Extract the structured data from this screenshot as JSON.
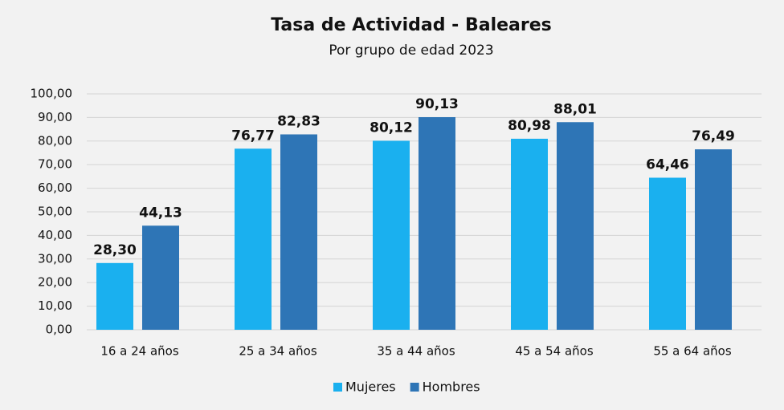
{
  "chart_data": {
    "type": "bar",
    "title": "Tasa de Actividad - Baleares",
    "subtitle": "Por grupo de edad 2023",
    "categories": [
      "16 a 24 años",
      "25 a 34 años",
      "35 a 44 años",
      "45 a 54 años",
      "55 a 64 años"
    ],
    "series": [
      {
        "name": "Mujeres",
        "color": "#1ab0ef",
        "values": [
          28.3,
          76.77,
          80.12,
          80.98,
          64.46
        ],
        "value_labels": [
          "28,30",
          "76,77",
          "80,12",
          "80,98",
          "64,46"
        ]
      },
      {
        "name": "Hombres",
        "color": "#2e75b6",
        "values": [
          44.13,
          82.83,
          90.13,
          88.01,
          76.49
        ],
        "value_labels": [
          "44,13",
          "82,83",
          "90,13",
          "88,01",
          "76,49"
        ]
      }
    ],
    "ylim": [
      0,
      100
    ],
    "yticks": [
      {
        "value": 0,
        "label": "0,00"
      },
      {
        "value": 10,
        "label": "10,00"
      },
      {
        "value": 20,
        "label": "20,00"
      },
      {
        "value": 30,
        "label": "30,00"
      },
      {
        "value": 40,
        "label": "40,00"
      },
      {
        "value": 50,
        "label": "50,00"
      },
      {
        "value": 60,
        "label": "60,00"
      },
      {
        "value": 70,
        "label": "70,00"
      },
      {
        "value": 80,
        "label": "80,00"
      },
      {
        "value": 90,
        "label": "90,00"
      },
      {
        "value": 100,
        "label": "100,00"
      }
    ],
    "grid": true,
    "legend": "bottom"
  }
}
